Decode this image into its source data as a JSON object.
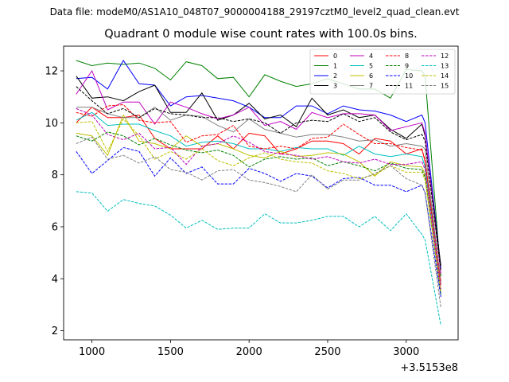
{
  "chart_data": {
    "type": "line",
    "suptitle": "Data file: modeM0/AS1A10_048T07_9000004188_29197cztM0_level2_quad_clean.evt",
    "title": "Quadrant 0 module wise count rates with 100.0s bins.",
    "xlabel": "",
    "ylabel": "",
    "x_offset_label": "+3.5153e8",
    "xlim": [
      820,
      3330
    ],
    "ylim": [
      1.65,
      12.95
    ],
    "xticks": [
      1000,
      1500,
      2000,
      2500,
      3000
    ],
    "xtick_labels": [
      "1000",
      "1500",
      "2000",
      "2500",
      "3000"
    ],
    "yticks": [
      2,
      4,
      6,
      8,
      10,
      12
    ],
    "ytick_labels": [
      "2",
      "4",
      "6",
      "8",
      "10",
      "12"
    ],
    "grid": false,
    "legend": "top-right",
    "x": [
      900,
      1000,
      1100,
      1200,
      1300,
      1400,
      1500,
      1600,
      1700,
      1800,
      1900,
      2000,
      2100,
      2200,
      2300,
      2400,
      2500,
      2600,
      2700,
      2800,
      2900,
      3000,
      3100,
      3120,
      3220
    ],
    "series": [
      {
        "name": "0",
        "color": "#ff0000",
        "dash": false,
        "values": [
          10.0,
          10.6,
          10.2,
          10.2,
          10.3,
          9.4,
          9.0,
          9.0,
          9.0,
          9.5,
          9.0,
          9.6,
          9.5,
          8.8,
          9.0,
          9.3,
          9.3,
          9.2,
          8.8,
          9.4,
          9.3,
          8.8,
          9.0,
          8.5,
          3.9
        ]
      },
      {
        "name": "1",
        "color": "#008000",
        "dash": false,
        "values": [
          12.4,
          12.2,
          12.3,
          12.25,
          12.3,
          12.1,
          11.65,
          12.35,
          12.2,
          11.7,
          11.75,
          11.0,
          11.85,
          11.6,
          11.4,
          11.5,
          11.7,
          11.5,
          11.3,
          11.3,
          10.95,
          12.05,
          12.0,
          11.8,
          4.1
        ]
      },
      {
        "name": "2",
        "color": "#0000ff",
        "dash": false,
        "values": [
          11.7,
          11.75,
          11.3,
          12.4,
          11.5,
          11.45,
          10.65,
          11.0,
          11.05,
          10.95,
          10.85,
          10.6,
          10.2,
          10.2,
          10.65,
          10.65,
          10.35,
          10.65,
          10.5,
          10.45,
          10.3,
          10.05,
          10.3,
          10.0,
          4.4
        ]
      },
      {
        "name": "3",
        "color": "#000000",
        "dash": false,
        "values": [
          11.8,
          10.95,
          11.0,
          10.85,
          11.2,
          11.45,
          10.4,
          10.4,
          11.15,
          10.1,
          10.3,
          10.75,
          10.15,
          10.3,
          9.85,
          10.95,
          10.3,
          10.5,
          10.2,
          10.3,
          9.75,
          9.4,
          9.95,
          9.5,
          4.5
        ]
      },
      {
        "name": "4",
        "color": "#bf00bf",
        "dash": false,
        "values": [
          11.1,
          12.0,
          10.5,
          10.8,
          10.8,
          9.95,
          10.8,
          10.6,
          10.35,
          10.15,
          10.3,
          10.6,
          9.9,
          10.05,
          9.75,
          10.4,
          10.2,
          10.35,
          10.35,
          10.3,
          9.7,
          9.85,
          10.0,
          9.6,
          4.2
        ]
      },
      {
        "name": "5",
        "color": "#00bfbf",
        "dash": false,
        "values": [
          10.1,
          10.4,
          9.9,
          9.95,
          9.95,
          9.7,
          9.5,
          9.1,
          9.25,
          9.3,
          9.2,
          9.0,
          9.0,
          8.9,
          9.05,
          9.0,
          9.0,
          8.75,
          9.1,
          8.8,
          8.7,
          8.8,
          8.7,
          8.3,
          3.8
        ]
      },
      {
        "name": "6",
        "color": "#bfbf00",
        "dash": false,
        "values": [
          9.6,
          9.5,
          8.75,
          10.3,
          9.3,
          9.2,
          9.0,
          9.5,
          9.1,
          9.2,
          9.0,
          8.75,
          8.65,
          8.9,
          8.7,
          8.75,
          8.85,
          8.8,
          8.5,
          7.95,
          8.5,
          8.35,
          8.3,
          8.0,
          3.5
        ]
      },
      {
        "name": "7",
        "color": "#808080",
        "dash": false,
        "values": [
          10.6,
          10.6,
          10.35,
          10.2,
          10.2,
          10.6,
          10.1,
          10.3,
          10.25,
          9.9,
          9.65,
          10.15,
          9.75,
          9.6,
          9.45,
          9.55,
          9.55,
          9.45,
          9.3,
          9.35,
          9.1,
          9.2,
          9.1,
          9.0,
          3.8
        ]
      },
      {
        "name": "8",
        "color": "#ff0000",
        "dash": true,
        "values": [
          10.4,
          10.25,
          10.65,
          10.7,
          10.1,
          10.0,
          10.05,
          9.25,
          9.5,
          9.55,
          9.9,
          9.1,
          9.0,
          9.1,
          9.0,
          9.4,
          9.45,
          9.95,
          9.55,
          9.2,
          9.2,
          9.05,
          8.95,
          8.6,
          3.7
        ]
      },
      {
        "name": "9",
        "color": "#008000",
        "dash": true,
        "values": [
          9.5,
          9.3,
          9.65,
          9.5,
          9.15,
          9.4,
          9.15,
          8.95,
          8.85,
          8.95,
          8.75,
          8.3,
          8.6,
          8.7,
          8.6,
          8.65,
          8.35,
          8.5,
          8.35,
          8.15,
          8.45,
          8.25,
          8.2,
          7.9,
          3.4
        ]
      },
      {
        "name": "10",
        "color": "#0000ff",
        "dash": true,
        "values": [
          8.9,
          8.05,
          8.55,
          9.05,
          8.9,
          7.95,
          8.65,
          8.05,
          8.3,
          7.65,
          7.65,
          8.25,
          8.05,
          7.75,
          8.05,
          7.95,
          7.5,
          7.85,
          7.9,
          7.6,
          7.6,
          7.35,
          7.6,
          7.3,
          3.3
        ]
      },
      {
        "name": "11",
        "color": "#000000",
        "dash": true,
        "values": [
          11.4,
          10.85,
          10.35,
          10.55,
          10.2,
          10.55,
          10.35,
          10.3,
          10.2,
          10.2,
          10.05,
          10.15,
          10.0,
          9.6,
          10.0,
          10.1,
          10.05,
          10.35,
          10.05,
          10.2,
          9.65,
          9.35,
          9.55,
          9.3,
          4.3
        ]
      },
      {
        "name": "12",
        "color": "#bf00bf",
        "dash": true,
        "values": [
          10.55,
          10.3,
          9.55,
          9.35,
          9.6,
          9.0,
          9.05,
          8.4,
          9.1,
          9.2,
          9.5,
          9.25,
          8.9,
          8.8,
          8.75,
          8.6,
          8.7,
          8.5,
          8.45,
          8.6,
          8.4,
          8.4,
          8.5,
          8.2,
          3.6
        ]
      },
      {
        "name": "13",
        "color": "#00bfbf",
        "dash": true,
        "values": [
          7.35,
          7.3,
          6.6,
          7.05,
          6.9,
          6.8,
          6.45,
          5.95,
          6.25,
          5.9,
          5.95,
          5.95,
          6.5,
          6.15,
          6.15,
          6.25,
          6.4,
          6.4,
          6.0,
          6.4,
          5.85,
          6.5,
          5.7,
          5.5,
          2.2
        ]
      },
      {
        "name": "14",
        "color": "#bfbf00",
        "dash": true,
        "values": [
          10.0,
          10.05,
          8.9,
          10.15,
          9.5,
          8.6,
          8.9,
          8.6,
          9.0,
          8.55,
          8.35,
          8.65,
          8.85,
          8.6,
          8.5,
          8.45,
          8.15,
          8.05,
          7.85,
          8.0,
          8.35,
          8.1,
          8.1,
          7.8,
          3.5
        ]
      },
      {
        "name": "15",
        "color": "#808080",
        "dash": true,
        "values": [
          9.2,
          9.45,
          8.6,
          8.75,
          8.45,
          8.7,
          8.2,
          8.1,
          7.8,
          8.15,
          8.2,
          7.8,
          7.7,
          7.55,
          7.35,
          8.0,
          7.45,
          7.8,
          7.8,
          8.05,
          8.35,
          7.85,
          7.6,
          7.3,
          2.9
        ]
      }
    ]
  }
}
